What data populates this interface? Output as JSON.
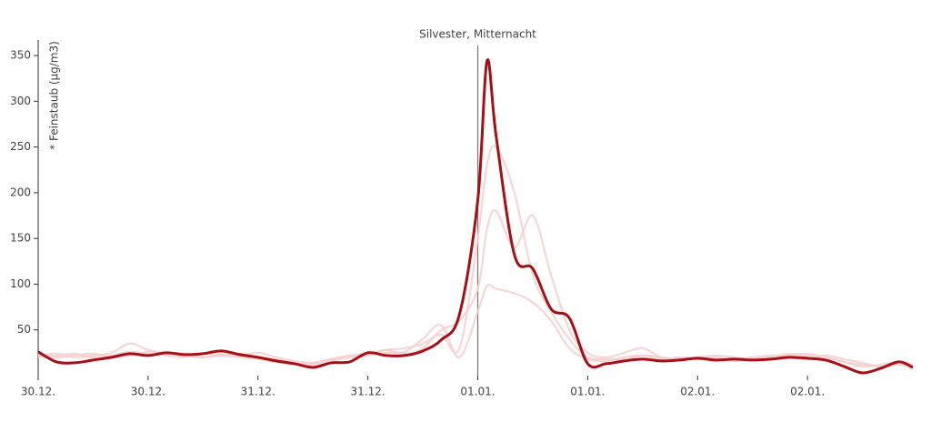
{
  "chart_data": {
    "type": "line",
    "y_label": "* Feinstaub (µg/m3)",
    "annotation": {
      "label": "Silvester, Mitternacht",
      "x": 48
    },
    "x": [
      0,
      2,
      4,
      6,
      8,
      10,
      12,
      14,
      16,
      18,
      20,
      22,
      24,
      26,
      28,
      30,
      32,
      34,
      36,
      38,
      40,
      42,
      44,
      46,
      48,
      49,
      50,
      52,
      54,
      56,
      58,
      60,
      62,
      64,
      66,
      68,
      70,
      72,
      74,
      76,
      78,
      80,
      82,
      84,
      86,
      88,
      90,
      92,
      94,
      95.5
    ],
    "xlim": [
      0,
      95.5
    ],
    "xticks": [
      {
        "value": 0,
        "label": "30.12."
      },
      {
        "value": 12,
        "label": "30.12."
      },
      {
        "value": 24,
        "label": "31.12."
      },
      {
        "value": 36,
        "label": "31.12."
      },
      {
        "value": 48,
        "label": "01.01."
      },
      {
        "value": 60,
        "label": "01.01."
      },
      {
        "value": 72,
        "label": "02.01."
      },
      {
        "value": 84,
        "label": "02.01."
      }
    ],
    "ylim": [
      0,
      367
    ],
    "yticks": [
      50,
      100,
      150,
      200,
      250,
      300,
      350
    ],
    "series": [
      {
        "color": "#f5cfcf",
        "values": [
          22,
          24,
          20,
          22,
          25,
          35,
          28,
          24,
          22,
          20,
          24,
          22,
          25,
          20,
          16,
          14,
          18,
          20,
          22,
          28,
          30,
          35,
          45,
          30,
          150,
          230,
          250,
          200,
          110,
          70,
          40,
          20,
          18,
          18,
          22,
          20,
          18,
          18,
          20,
          16,
          18,
          20,
          22,
          24,
          20,
          15,
          12,
          10,
          12,
          10
        ]
      },
      {
        "color": "#f5cfcf",
        "values": [
          20,
          22,
          24,
          20,
          22,
          26,
          24,
          22,
          20,
          24,
          22,
          20,
          18,
          15,
          12,
          14,
          18,
          22,
          24,
          28,
          24,
          30,
          50,
          60,
          95,
          160,
          180,
          140,
          175,
          110,
          50,
          25,
          20,
          25,
          30,
          20,
          18,
          20,
          22,
          20,
          18,
          20,
          24,
          22,
          20,
          15,
          10,
          12,
          15,
          12
        ]
      },
      {
        "color": "#f5cfcf",
        "values": [
          24,
          20,
          22,
          24,
          20,
          22,
          26,
          24,
          22,
          20,
          22,
          24,
          20,
          18,
          14,
          12,
          16,
          20,
          22,
          25,
          26,
          40,
          55,
          20,
          70,
          98,
          95,
          90,
          80,
          60,
          30,
          18,
          16,
          20,
          22,
          18,
          20,
          18,
          16,
          18,
          20,
          22,
          20,
          18,
          22,
          18,
          14,
          10,
          12,
          8
        ]
      },
      {
        "color": "#a50f15",
        "values": [
          26,
          15,
          14,
          17,
          20,
          24,
          22,
          25,
          23,
          24,
          27,
          23,
          20,
          16,
          13,
          9,
          14,
          15,
          25,
          22,
          22,
          27,
          39,
          67,
          192,
          344,
          262,
          132,
          117,
          73,
          63,
          13,
          13,
          16,
          18,
          16,
          17,
          19,
          17,
          18,
          17,
          18,
          20,
          19,
          17,
          10,
          3,
          8,
          15,
          9
        ]
      }
    ]
  }
}
